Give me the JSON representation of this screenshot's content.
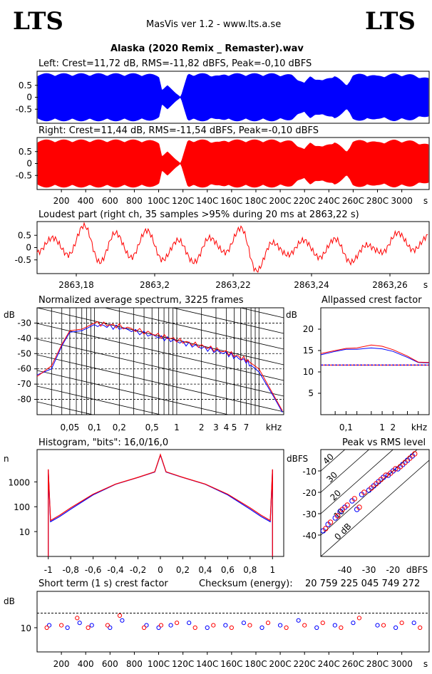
{
  "header": {
    "logo_left": "LTS",
    "logo_right": "LTS",
    "app_title": "MasVis ver 1.2 - www.lts.a.se",
    "file_title": "Alaska (2020 Remix _ Remaster).wav"
  },
  "colors": {
    "left": "#0000ff",
    "right": "#ff0000"
  },
  "chart_data": [
    {
      "type": "area",
      "title": "Left: Crest=11,72 dB, RMS=-11,82 dBFS, Peak=-0,10 dBFS",
      "channel": "left",
      "yticks": [
        "0.5",
        "0",
        "-0.5"
      ],
      "ylim": [
        -1,
        1
      ],
      "xlim": [
        0,
        3225
      ],
      "gaps": [
        [
          1025,
          1070
        ],
        [
          1180,
          1240
        ]
      ],
      "envelope_x": [
        0,
        50,
        150,
        250,
        400,
        550,
        700,
        850,
        1000,
        1025,
        1070,
        1180,
        1240,
        1400,
        1500,
        1550,
        1650,
        1800,
        1950,
        2100,
        2200,
        2250,
        2350,
        2450,
        2550,
        2600,
        2700,
        2800,
        2950,
        3100,
        3225
      ],
      "envelope_y": [
        1,
        1,
        1,
        1,
        1,
        1,
        1,
        1,
        0.95,
        0.3,
        0.5,
        0,
        1,
        1,
        0.9,
        1,
        1,
        1,
        1,
        0.95,
        0.6,
        0.9,
        0.7,
        0.95,
        0.5,
        0.95,
        1,
        0.9,
        1,
        0.95,
        0.8
      ]
    },
    {
      "type": "area",
      "title": "Right: Crest=11,44 dB, RMS=-11,54 dBFS, Peak=-0,10 dBFS",
      "channel": "right",
      "yticks": [
        "0.5",
        "0",
        "-0.5"
      ],
      "ylim": [
        -1,
        1
      ],
      "xlim": [
        0,
        3225
      ],
      "xticks": [
        "200",
        "400",
        "600",
        "800",
        "100C",
        "120C",
        "140C",
        "160C",
        "180C",
        "200C",
        "220C",
        "240C",
        "260C",
        "280C",
        "3000"
      ],
      "xunit": "s",
      "envelope_x": [
        0,
        50,
        150,
        250,
        400,
        550,
        700,
        850,
        1000,
        1025,
        1070,
        1180,
        1240,
        1400,
        1500,
        1550,
        1650,
        1800,
        1950,
        2100,
        2200,
        2250,
        2350,
        2450,
        2550,
        2600,
        2700,
        2800,
        2950,
        3100,
        3225
      ],
      "envelope_y": [
        1,
        1,
        1,
        1,
        1,
        1,
        1,
        1,
        0.95,
        0.3,
        0.5,
        0,
        1,
        1,
        0.9,
        1,
        1,
        1,
        1,
        0.95,
        0.6,
        0.9,
        0.7,
        0.95,
        0.5,
        0.95,
        1,
        0.9,
        1,
        0.95,
        0.8
      ]
    },
    {
      "type": "line",
      "title": "Loudest part (right ch, 35 samples >95% during 20 ms at 2863,22 s)",
      "yticks": [
        "0.5",
        "0",
        "-0.5"
      ],
      "ylim": [
        -1,
        1
      ],
      "xlim": [
        2863.17,
        2863.27
      ],
      "xticks": [
        "2863,18",
        "2863,2",
        "2863,22",
        "2863,24",
        "2863,26"
      ],
      "xunit": "s",
      "x": [
        2863.17,
        2863.174,
        2863.178,
        2863.182,
        2863.186,
        2863.19,
        2863.194,
        2863.198,
        2863.202,
        2863.206,
        2863.21,
        2863.214,
        2863.218,
        2863.222,
        2863.226,
        2863.23,
        2863.234,
        2863.238,
        2863.242,
        2863.246,
        2863.25,
        2863.254,
        2863.258,
        2863.262,
        2863.266,
        2863.27
      ],
      "y": [
        -0.2,
        0.4,
        -0.3,
        0.9,
        -0.6,
        0.6,
        -0.4,
        0.7,
        -0.5,
        0.3,
        -0.6,
        0.4,
        -0.2,
        0.8,
        -0.95,
        0.2,
        -0.3,
        0.3,
        -0.4,
        0.35,
        -0.6,
        0.1,
        -0.2,
        0.6,
        -0.1,
        0.5
      ]
    },
    {
      "type": "line",
      "title": "Normalized average spectrum, 3225 frames",
      "ylabel": "dB",
      "xunit": "kHz",
      "ylim": [
        -90,
        -20
      ],
      "yticks": [
        "-30",
        "-40",
        "-50",
        "-60",
        "-70",
        "-80"
      ],
      "xticks": [
        "0,05",
        "0,1",
        "0,2",
        "0,5",
        "1",
        "2",
        "3",
        "4",
        "5",
        "7"
      ],
      "xlim": [
        0.02,
        20
      ],
      "series": [
        {
          "name": "left",
          "x": [
            0.02,
            0.03,
            0.04,
            0.05,
            0.07,
            0.1,
            0.2,
            0.5,
            1,
            2,
            4,
            7,
            10,
            15,
            20
          ],
          "y": [
            -64,
            -60,
            -45,
            -36,
            -35,
            -31,
            -33,
            -38,
            -42,
            -46,
            -50,
            -55,
            -62,
            -78,
            -90
          ]
        },
        {
          "name": "right",
          "x": [
            0.02,
            0.03,
            0.04,
            0.05,
            0.07,
            0.1,
            0.2,
            0.5,
            1,
            2,
            4,
            7,
            10,
            15,
            20
          ],
          "y": [
            -65,
            -58,
            -44,
            -35,
            -34,
            -30,
            -32,
            -37,
            -41,
            -45,
            -49,
            -54,
            -60,
            -77,
            -89
          ]
        }
      ]
    },
    {
      "type": "line",
      "title": "Allpassed crest factor",
      "ylabel": "dB",
      "xunit": "kHz",
      "ylim": [
        0,
        25
      ],
      "yticks": [
        "20",
        "15",
        "10",
        "5"
      ],
      "xticks": [
        "0,1",
        "1",
        "2"
      ],
      "xlim": [
        0.02,
        20
      ],
      "reference": 11.6,
      "series": [
        {
          "name": "left",
          "x": [
            0.02,
            0.05,
            0.1,
            0.2,
            0.5,
            1,
            2,
            5,
            10,
            20
          ],
          "y": [
            14,
            14.8,
            15.3,
            15.3,
            15.6,
            15.4,
            14.8,
            13.4,
            12.2,
            12.1
          ]
        },
        {
          "name": "right",
          "x": [
            0.02,
            0.05,
            0.1,
            0.2,
            0.5,
            1,
            2,
            5,
            10,
            20
          ],
          "y": [
            14.3,
            15,
            15.5,
            15.6,
            16.3,
            16,
            15.2,
            13.7,
            12.3,
            12.2
          ]
        }
      ]
    },
    {
      "type": "line",
      "title": "Histogram, \"bits\": 16,0/16,0",
      "ylabel": "n",
      "yticks": [
        "1000",
        "100",
        "10"
      ],
      "xticks": [
        "-1",
        "-0,8",
        "-0,6",
        "-0,4",
        "-0,2",
        "0",
        "0,2",
        "0,4",
        "0,6",
        "0,8",
        "1"
      ],
      "xlim": [
        -1.1,
        1.1
      ],
      "series": [
        {
          "name": "left",
          "x": [
            -1,
            -0.98,
            -0.9,
            -0.8,
            -0.6,
            -0.4,
            -0.2,
            -0.05,
            0,
            0.05,
            0.2,
            0.4,
            0.6,
            0.8,
            0.9,
            0.98,
            1
          ],
          "y": [
            3000,
            25,
            40,
            80,
            300,
            800,
            1500,
            2500,
            12000,
            2500,
            1500,
            800,
            300,
            80,
            40,
            25,
            3000
          ]
        },
        {
          "name": "right",
          "x": [
            -1,
            -0.98,
            -0.9,
            -0.8,
            -0.6,
            -0.4,
            -0.2,
            -0.05,
            0,
            0.05,
            0.2,
            0.4,
            0.6,
            0.8,
            0.9,
            0.98,
            1
          ],
          "y": [
            3200,
            28,
            45,
            90,
            320,
            820,
            1520,
            2550,
            12500,
            2550,
            1520,
            820,
            320,
            90,
            45,
            28,
            3200
          ]
        }
      ]
    },
    {
      "type": "scatter",
      "title": "Peak vs RMS level",
      "ylabel": "dBFS",
      "xlabel": "dBFS",
      "yticks": [
        "-10",
        "-20",
        "-30",
        "-40"
      ],
      "xticks": [
        "-40",
        "-30",
        "-20"
      ],
      "xlim": [
        -50,
        -5
      ],
      "ylim": [
        -50,
        0
      ],
      "diagonal_labels": [
        "40",
        "30",
        "20",
        "10",
        "0 dB"
      ],
      "series": [
        {
          "name": "left",
          "x": [
            -49,
            -47,
            -44,
            -42,
            -40,
            -37,
            -35,
            -33,
            -30,
            -28,
            -26,
            -24,
            -22,
            -20,
            -18,
            -16,
            -14,
            -12
          ],
          "y": [
            -38,
            -35,
            -32,
            -29,
            -27,
            -24,
            -28,
            -21,
            -19,
            -17,
            -15,
            -13,
            -12,
            -10,
            -9,
            -7,
            -5,
            -3
          ]
        },
        {
          "name": "right",
          "x": [
            -48,
            -46,
            -43,
            -41,
            -39,
            -36,
            -34,
            -32,
            -29,
            -27,
            -25,
            -23,
            -21,
            -19,
            -17,
            -15,
            -13,
            -11
          ],
          "y": [
            -37,
            -34,
            -31,
            -28,
            -26,
            -23,
            -27,
            -20,
            -18,
            -16,
            -14,
            -12,
            -11,
            -9,
            -8,
            -6,
            -4,
            -2
          ]
        }
      ]
    },
    {
      "type": "scatter",
      "title": "Short term (1 s) crest factor",
      "checksum_label": "Checksum (energy):",
      "checksum_value": "20 759 225 045 749 272",
      "ylabel": "dB",
      "yticks": [
        "10"
      ],
      "ylim": [
        0,
        25
      ],
      "reference": 16,
      "xticks": [
        "200",
        "400",
        "600",
        "800",
        "100C",
        "120C",
        "140C",
        "160C",
        "180C",
        "200C",
        "220C",
        "240C",
        "260C",
        "280C",
        "3000"
      ],
      "xunit": "s",
      "xlim": [
        0,
        3225
      ],
      "series": [
        {
          "name": "left",
          "x": [
            100,
            250,
            350,
            450,
            600,
            700,
            900,
            1000,
            1100,
            1250,
            1400,
            1550,
            1700,
            1850,
            2000,
            2150,
            2300,
            2450,
            2600,
            2800,
            2950,
            3100
          ],
          "y": [
            11,
            10,
            12,
            11,
            10,
            13,
            11,
            10,
            11,
            12,
            10,
            11,
            12,
            10,
            11,
            13,
            10,
            11,
            12,
            11,
            10,
            12
          ]
        },
        {
          "name": "right",
          "x": [
            80,
            200,
            330,
            420,
            580,
            680,
            880,
            1020,
            1150,
            1300,
            1450,
            1600,
            1750,
            1900,
            2050,
            2200,
            2350,
            2500,
            2650,
            2850,
            3000,
            3150
          ],
          "y": [
            10,
            11,
            14,
            10,
            11,
            15,
            10,
            11,
            12,
            10,
            11,
            10,
            11,
            12,
            10,
            11,
            12,
            10,
            14,
            11,
            12,
            10
          ]
        }
      ]
    }
  ]
}
